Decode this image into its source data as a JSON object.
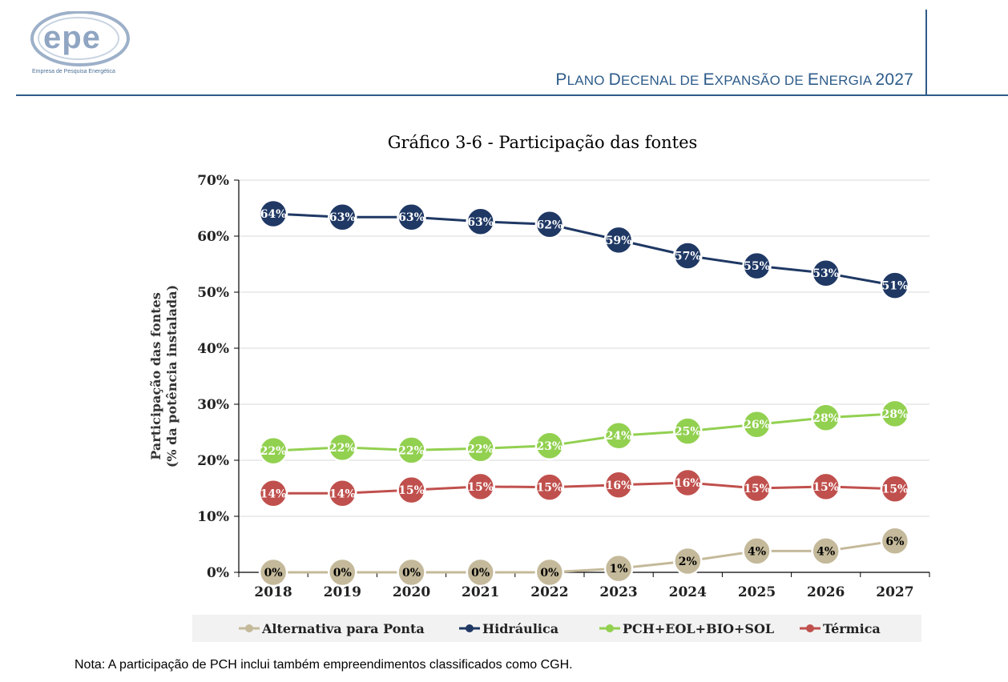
{
  "header": {
    "logo_text": "epe",
    "logo_caption": "Empresa de Pesquisa Energética",
    "doc_title_parts": [
      {
        "cap": "P",
        "rest": "LANO "
      },
      {
        "cap": "D",
        "rest": "ECENAL DE "
      },
      {
        "cap": "E",
        "rest": "XPANSÃO DE "
      },
      {
        "cap": "E",
        "rest": "NERGIA "
      },
      {
        "cap": "2027",
        "rest": ""
      }
    ]
  },
  "chart_data": {
    "type": "line",
    "title": "Gráfico 3-6 - Participação das fontes",
    "ylabel_lines": [
      "Participação das fontes",
      "(% da potência instalada)"
    ],
    "xlabel": "",
    "categories": [
      "2018",
      "2019",
      "2020",
      "2021",
      "2022",
      "2023",
      "2024",
      "2025",
      "2026",
      "2027"
    ],
    "ylim": [
      0,
      70
    ],
    "yticks": [
      0,
      10,
      20,
      30,
      40,
      50,
      60,
      70
    ],
    "ytick_labels": [
      "0%",
      "10%",
      "20%",
      "30%",
      "40%",
      "50%",
      "60%",
      "70%"
    ],
    "grid": true,
    "legend_position": "bottom",
    "series": [
      {
        "name": "Alternativa para Ponta",
        "color": "#c4b99a",
        "label_color": "#000000",
        "values": [
          0,
          0,
          0,
          0,
          0,
          0.7,
          2,
          3.8,
          3.8,
          5.6
        ],
        "labels": [
          "0%",
          "0%",
          "0%",
          "0%",
          "0%",
          "1%",
          "2%",
          "4%",
          "4%",
          "6%"
        ]
      },
      {
        "name": "Hidráulica",
        "color": "#1f3864",
        "label_color": "#ffffff",
        "values": [
          64,
          63.4,
          63.4,
          62.6,
          62.1,
          59.3,
          56.5,
          54.7,
          53.4,
          51.2
        ],
        "labels": [
          "64%",
          "63%",
          "63%",
          "63%",
          "62%",
          "59%",
          "57%",
          "55%",
          "53%",
          "51%"
        ]
      },
      {
        "name": "PCH+EOL+BIO+SOL",
        "color": "#92d050",
        "label_color": "#ffffff",
        "values": [
          21.7,
          22.3,
          21.8,
          22.1,
          22.6,
          24.4,
          25.2,
          26.4,
          27.6,
          28.3
        ],
        "labels": [
          "22%",
          "22%",
          "22%",
          "22%",
          "23%",
          "24%",
          "25%",
          "26%",
          "28%",
          "28%"
        ]
      },
      {
        "name": "Térmica",
        "color": "#c0504d",
        "label_color": "#ffffff",
        "values": [
          14.1,
          14.1,
          14.7,
          15.3,
          15.2,
          15.6,
          16,
          15,
          15.3,
          14.9
        ],
        "labels": [
          "14%",
          "14%",
          "15%",
          "15%",
          "15%",
          "16%",
          "16%",
          "15%",
          "15%",
          "15%"
        ]
      }
    ],
    "legend_order": [
      0,
      1,
      2,
      3
    ]
  },
  "note": "Nota: A participação de PCH inclui também empreendimentos classificados como CGH."
}
